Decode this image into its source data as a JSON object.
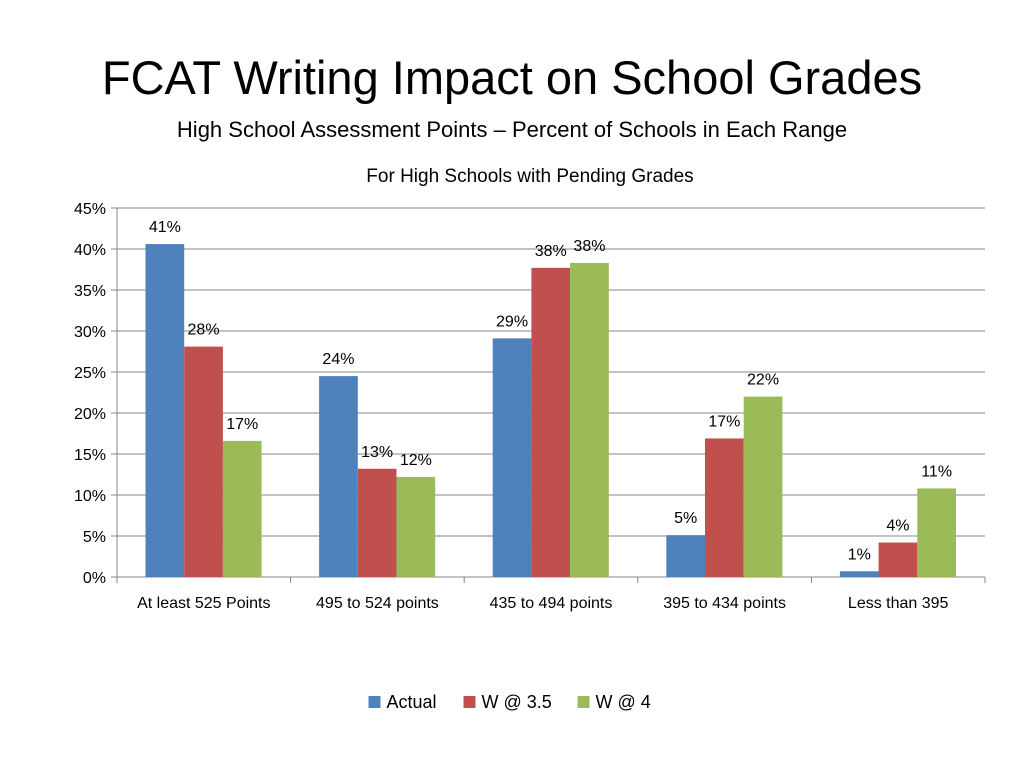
{
  "slide": {
    "title": "FCAT Writing Impact on School Grades",
    "subtitle": "High School Assessment Points – Percent of Schools in Each Range"
  },
  "chart_data": {
    "type": "bar",
    "title": "For High Schools with Pending Grades",
    "xlabel": "",
    "ylabel": "",
    "ylim": [
      0,
      45
    ],
    "ytick_step": 5,
    "ytick_suffix": "%",
    "grid": true,
    "legend_position": "bottom",
    "categories": [
      "At least 525 Points",
      "495 to 524 points",
      "435 to 494 points",
      "395 to 434 points",
      "Less than 395"
    ],
    "series": [
      {
        "name": "Actual",
        "color": "#4F81BD",
        "values": [
          40.6,
          24.5,
          29.1,
          5.1,
          0.7
        ],
        "labels": [
          "41%",
          "24%",
          "29%",
          "5%",
          "1%"
        ]
      },
      {
        "name": "W @ 3.5",
        "color": "#C0504D",
        "values": [
          28.1,
          13.2,
          37.7,
          16.9,
          4.2
        ],
        "labels": [
          "28%",
          "13%",
          "38%",
          "17%",
          "4%"
        ]
      },
      {
        "name": "W @ 4",
        "color": "#9BBB59",
        "values": [
          16.6,
          12.2,
          38.3,
          22.0,
          10.8
        ],
        "labels": [
          "17%",
          "12%",
          "38%",
          "22%",
          "11%"
        ]
      }
    ]
  }
}
